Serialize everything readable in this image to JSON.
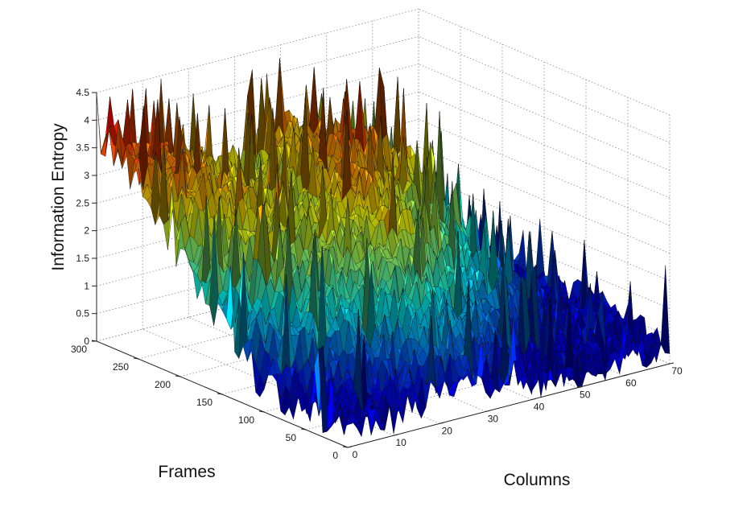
{
  "chart_data": {
    "type": "surface",
    "title": "",
    "xlabel": "Columns",
    "ylabel": "Frames",
    "zlabel": "Information Entropy",
    "xlim": [
      0,
      70
    ],
    "ylim": [
      0,
      300
    ],
    "zlim": [
      0,
      4.5
    ],
    "x_ticks": [
      "0",
      "10",
      "20",
      "30",
      "40",
      "50",
      "60",
      "70"
    ],
    "y_ticks": [
      "0",
      "50",
      "100",
      "150",
      "200",
      "250",
      "300"
    ],
    "z_ticks": [
      "0",
      "0.5",
      "1",
      "1.5",
      "2",
      "2.5",
      "3",
      "3.5",
      "4",
      "4.5"
    ],
    "grid": true,
    "colormap": "jet",
    "surface_profile": {
      "columns": [
        0,
        5,
        10,
        15,
        20,
        25,
        30,
        35,
        40,
        45,
        50,
        55,
        60,
        65
      ],
      "frames": [
        0,
        50,
        100,
        150,
        200,
        250,
        300
      ],
      "values": [
        [
          0.3,
          0.4,
          0.3,
          0.4,
          0.5,
          0.6,
          0.6,
          0.4,
          0.3,
          0.3,
          0.3,
          0.3,
          0.3,
          0.3
        ],
        [
          0.3,
          0.6,
          0.8,
          1.2,
          1.5,
          1.8,
          1.6,
          1.4,
          1.0,
          0.6,
          0.5,
          0.4,
          0.4,
          0.4
        ],
        [
          0.5,
          1.4,
          1.8,
          2.2,
          2.3,
          2.5,
          2.8,
          2.4,
          2.0,
          1.6,
          1.3,
          0.9,
          0.6,
          0.5
        ],
        [
          1.2,
          2.4,
          2.6,
          2.6,
          2.7,
          2.8,
          3.3,
          2.7,
          2.4,
          2.2,
          1.9,
          1.4,
          0.7,
          0.5
        ],
        [
          2.2,
          2.9,
          3.0,
          2.9,
          2.8,
          2.5,
          2.9,
          3.3,
          3.4,
          3.1,
          2.8,
          2.0,
          0.8,
          0.5
        ],
        [
          3.2,
          3.3,
          3.2,
          3.0,
          2.8,
          2.6,
          2.6,
          3.0,
          3.2,
          3.0,
          2.6,
          1.9,
          0.6,
          0.5
        ],
        [
          3.8,
          3.5,
          3.3,
          3.0,
          2.9,
          2.7,
          2.6,
          2.9,
          3.0,
          2.8,
          2.4,
          1.8,
          0.6,
          0.5
        ]
      ]
    }
  }
}
